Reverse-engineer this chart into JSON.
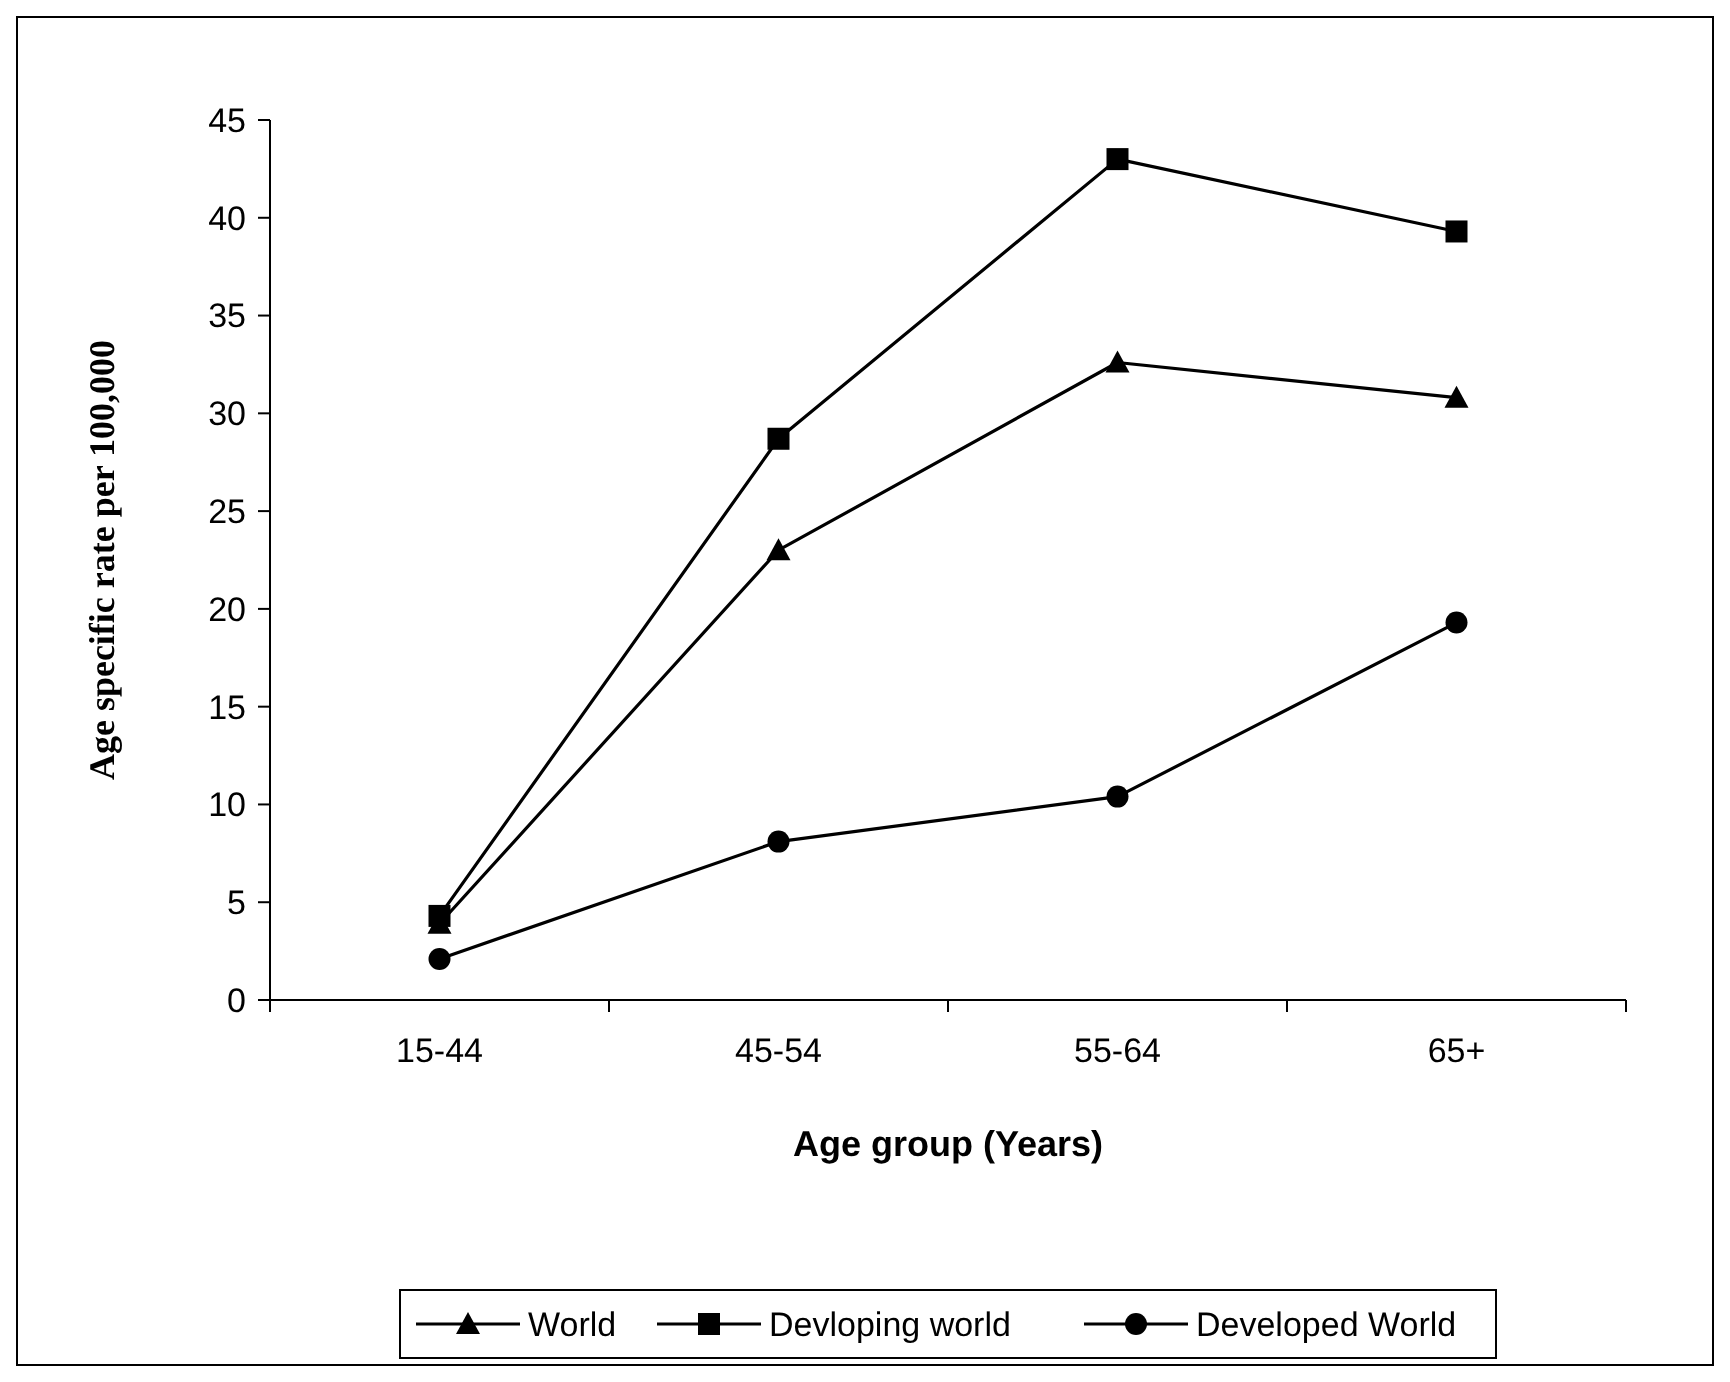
{
  "chart_data": {
    "type": "line",
    "xlabel": "Age group (Years)",
    "ylabel": "Age specific rate per 100,000",
    "categories": [
      "15-44",
      "45-54",
      "55-64",
      "65+"
    ],
    "ylim": [
      0,
      45
    ],
    "yticks": [
      0,
      5,
      10,
      15,
      20,
      25,
      30,
      35,
      40,
      45
    ],
    "grid": false,
    "legend": "bottom",
    "line_style": "solid",
    "series": [
      {
        "name": "World",
        "color": "#000000",
        "marker": "triangle",
        "values": [
          3.9,
          23.0,
          32.6,
          30.8
        ]
      },
      {
        "name": "Devloping world",
        "color": "#000000",
        "marker": "square",
        "values": [
          4.3,
          28.7,
          43.0,
          39.3
        ]
      },
      {
        "name": "Developed World",
        "color": "#000000",
        "marker": "circle",
        "values": [
          2.1,
          8.1,
          10.4,
          19.3
        ]
      }
    ]
  }
}
